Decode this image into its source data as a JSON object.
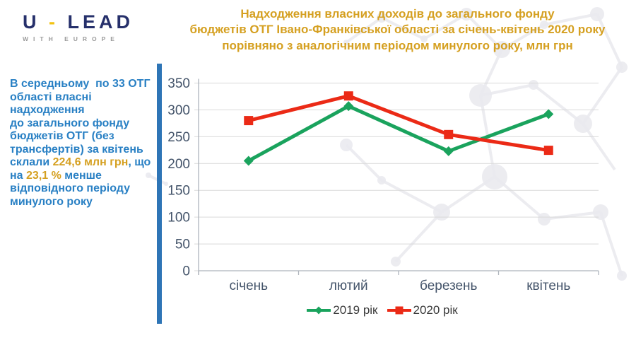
{
  "logo": {
    "brand": "U - LEAD",
    "brand_u": "U",
    "brand_dash": "-",
    "brand_lead": "LEAD",
    "tagline": "WITH EUROPE"
  },
  "header": {
    "title": "Надходження власних доходів до загального фонду\nбюджетів ОТГ Івано-Франківської області за січень-квітень 2020 року\nпорівняно з аналогічним періодом минулого року, млн грн",
    "title_color": "#D5A021"
  },
  "sidebar": {
    "text_color": "#2980C4",
    "highlight_color": "#D5A021",
    "segments": {
      "part1": "В середньому  по 33 ОТГ області власні надходження\nдо загального фонду бюджетів ОТГ (без трансфертів) за квітень склали ",
      "gold1": "224,6 млн грн",
      "part2": ", що на ",
      "gold2": "23,1 %",
      "part3": " менше відповідного періоду минулого року"
    }
  },
  "chart_data": {
    "type": "line",
    "title": "Надходження власних доходів до загального фонду бюджетів ОТГ Івано-Франківської області за січень-квітень 2020 року порівняно з аналогічним періодом минулого року, млн грн",
    "xlabel": "",
    "ylabel": "млн грн",
    "categories": [
      "січень",
      "лютий",
      "березень",
      "квітень"
    ],
    "series": [
      {
        "name": "2019 рік",
        "color": "#1AA35D",
        "marker": "diamond",
        "values": [
          205,
          307,
          223,
          292.1
        ]
      },
      {
        "name": "2020 рік",
        "color": "#EB2A16",
        "marker": "square",
        "values": [
          280,
          326,
          254,
          224.6
        ]
      }
    ],
    "ylim": [
      0,
      350
    ],
    "ytick_step": 50,
    "grid": true,
    "legend_position": "bottom",
    "colors": {
      "gridline": "#D9D9D9",
      "axis": "#AEB4BC",
      "tick_label": "#44546A"
    }
  }
}
